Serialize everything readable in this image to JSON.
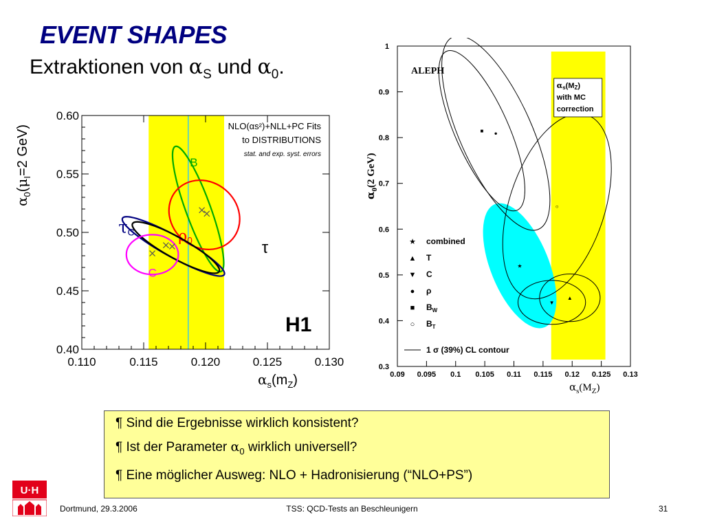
{
  "slide": {
    "title": "EVENT SHAPES",
    "subtitle_pre": "Extraktionen von ",
    "alpha": "α",
    "sub_s": "S",
    "subtitle_mid": " und ",
    "sub_0": "0",
    "subtitle_end": "."
  },
  "chart_data": [
    {
      "type": "scatter",
      "title": "H1",
      "annotation_lines": [
        "NLO(αs²)+NLL+PC Fits",
        "to DISTRIBUTIONS",
        "stat. and exp. syst. errors"
      ],
      "xlabel": "αs(mZ)",
      "ylabel": "α0(μI=2 GeV)",
      "xlim": [
        0.11,
        0.13
      ],
      "ylim": [
        0.4,
        0.6
      ],
      "x_ticks": [
        "0.110",
        "0.115",
        "0.120",
        "0.125",
        "0.130"
      ],
      "y_ticks": [
        "0.40",
        "0.45",
        "0.50",
        "0.55",
        "0.60"
      ],
      "band": {
        "x_from": 0.1154,
        "x_to": 0.1215,
        "center": 0.1186,
        "color": "#ffff00"
      },
      "series": [
        {
          "name": "B",
          "color": "#00aa00",
          "x": 0.1194,
          "y": 0.52,
          "rx": 0.001,
          "ry": 0.057,
          "angle": -20
        },
        {
          "name": "ρ0",
          "color": "#ff0000",
          "x": 0.1199,
          "y": 0.515,
          "rx": 0.003,
          "ry": 0.028,
          "angle": 40
        },
        {
          "name": "τC",
          "color": "#000080",
          "x": 0.1174,
          "y": 0.488,
          "rx": 0.0047,
          "ry": 0.009,
          "angle": 29
        },
        {
          "name": "τ",
          "color": "#000000",
          "x": 0.1176,
          "y": 0.487,
          "rx": 0.004,
          "ry": 0.009,
          "angle": 29
        },
        {
          "name": "C",
          "color": "#ff00ff",
          "x": 0.1157,
          "y": 0.481,
          "rx": 0.0021,
          "ry": 0.017,
          "angle": 0
        }
      ],
      "markers": [
        {
          "x": 0.1157,
          "y": 0.482
        },
        {
          "x": 0.1168,
          "y": 0.489
        },
        {
          "x": 0.1173,
          "y": 0.488
        },
        {
          "x": 0.1197,
          "y": 0.519
        },
        {
          "x": 0.1201,
          "y": 0.516
        }
      ]
    },
    {
      "type": "scatter",
      "title": "ALEPH",
      "xlabel": "αs(MZ)",
      "ylabel": "α0(2 GeV)",
      "xlim": [
        0.09,
        0.13
      ],
      "ylim": [
        0.3,
        1.0
      ],
      "x_ticks": [
        "0.09",
        "0.095",
        "0.1",
        "0.105",
        "0.11",
        "0.115",
        "0.12",
        "0.125",
        "0.13"
      ],
      "y_ticks": [
        "0.3",
        "0.4",
        "0.5",
        "0.6",
        "0.7",
        "0.8",
        "0.9",
        "1"
      ],
      "band": {
        "x_from": 0.1164,
        "x_to": 0.1257,
        "color": "#ffff00",
        "label": [
          "αs(MZ)",
          "with MC",
          "correction"
        ]
      },
      "legend": [
        {
          "symbol": "★",
          "label": "combined"
        },
        {
          "symbol": "▲",
          "label": "T"
        },
        {
          "symbol": "▼",
          "label": "C"
        },
        {
          "symbol": "●",
          "label": "ρ"
        },
        {
          "symbol": "■",
          "label": "BW"
        },
        {
          "symbol": "○",
          "label": "BT"
        }
      ],
      "contour_label": "1 σ (39%) CL contour",
      "points": [
        {
          "name": "combined",
          "x": 0.111,
          "y": 0.52,
          "filled_ellipse": true,
          "rx": 0.005,
          "ry": 0.145,
          "angle": -22
        },
        {
          "name": "T",
          "x": 0.1196,
          "y": 0.45,
          "rx": 0.0052,
          "ry": 0.052,
          "angle": 0
        },
        {
          "name": "C",
          "x": 0.1165,
          "y": 0.44,
          "rx": 0.0058,
          "ry": 0.048,
          "angle": 0
        },
        {
          "name": "ρ",
          "x": 0.1069,
          "y": 0.81,
          "rx": 0.0062,
          "ry": 0.23,
          "angle": -24
        },
        {
          "name": "BW",
          "x": 0.1045,
          "y": 0.815,
          "rx": 0.0046,
          "ry": 0.19,
          "angle": -24
        },
        {
          "name": "BT",
          "x": 0.1174,
          "y": 0.65,
          "rx": 0.0082,
          "ry": 0.21,
          "angle": 18
        }
      ]
    }
  ],
  "bullets": [
    {
      "text": "¶ Sind die Ergebnisse wirklich konsistent?"
    },
    {
      "pre": "¶ Ist der Parameter ",
      "alpha": "α",
      "sub": "0",
      "post": " wirklich universell?"
    },
    {
      "text": "¶ Eine möglicher Ausweg: NLO + Hadronisierung (“NLO+PS”)"
    }
  ],
  "footer": {
    "left": "Dortmund, 29.3.2006",
    "center": "TSS: QCD-Tests an Beschleunigern",
    "page": "31"
  },
  "logo": {
    "text": "U·H",
    "color": "#e2001a"
  }
}
